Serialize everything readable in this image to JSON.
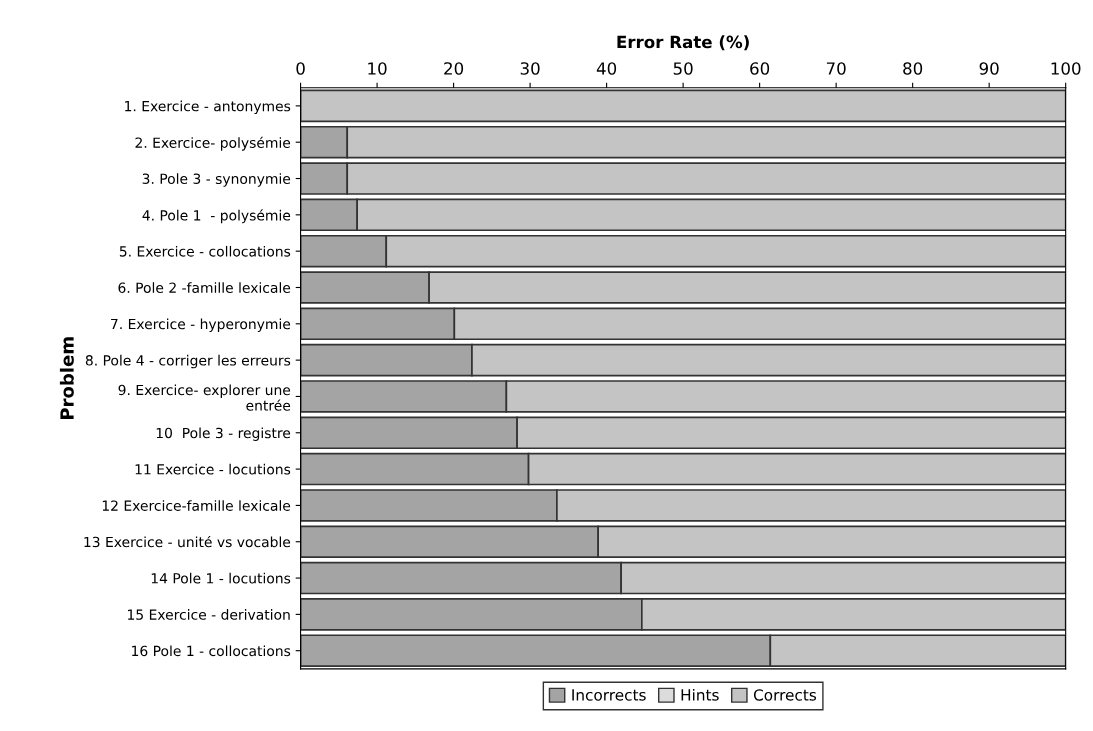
{
  "chart_data": {
    "type": "bar",
    "orientation": "horizontal",
    "stacked": true,
    "xlabel": "Error Rate (%)",
    "ylabel": "Problem",
    "categories": [
      "1. Exercice - antonymes",
      "2. Exercice- polysémie",
      "3. Pole 3 - synonymie",
      "4. Pole 1  - polysémie",
      "5. Exercice - collocations",
      "6. Pole 2 -famille lexicale",
      "7. Exercice - hyperonymie",
      "8. Pole 4 - corriger les erreurs",
      "9. Exercice- explorer une\nentrée",
      "10  Pole 3 - registre",
      "11 Exercice - locutions",
      "12 Exercice-famille lexicale",
      "13 Exercice - unité vs vocable",
      "14 Pole 1 - locutions",
      "15 Exercice - derivation",
      "16 Pole 1 - collocations"
    ],
    "series": [
      {
        "name": "Incorrects",
        "color": "#a4a4a4",
        "values": [
          0,
          6.1,
          6.1,
          7.4,
          11.2,
          16.8,
          20.1,
          22.4,
          26.9,
          28.3,
          29.8,
          33.5,
          38.9,
          41.9,
          44.6,
          61.4
        ]
      },
      {
        "name": "Hints",
        "color": "#dcdcdc",
        "values": [
          0,
          0,
          0,
          0,
          0,
          0,
          0,
          0,
          0,
          0,
          0,
          0,
          0,
          0,
          0,
          0
        ]
      },
      {
        "name": "Corrects",
        "color": "#c4c4c4",
        "values": [
          100,
          93.9,
          93.9,
          92.6,
          88.8,
          83.2,
          79.9,
          77.6,
          73.1,
          71.7,
          70.2,
          66.5,
          61.1,
          58.1,
          55.4,
          38.6
        ]
      }
    ],
    "xlim": [
      0,
      100
    ],
    "xticks": [
      0,
      10,
      20,
      30,
      40,
      50,
      60,
      70,
      80,
      90,
      100
    ],
    "legend": "bottom",
    "grid": false
  }
}
